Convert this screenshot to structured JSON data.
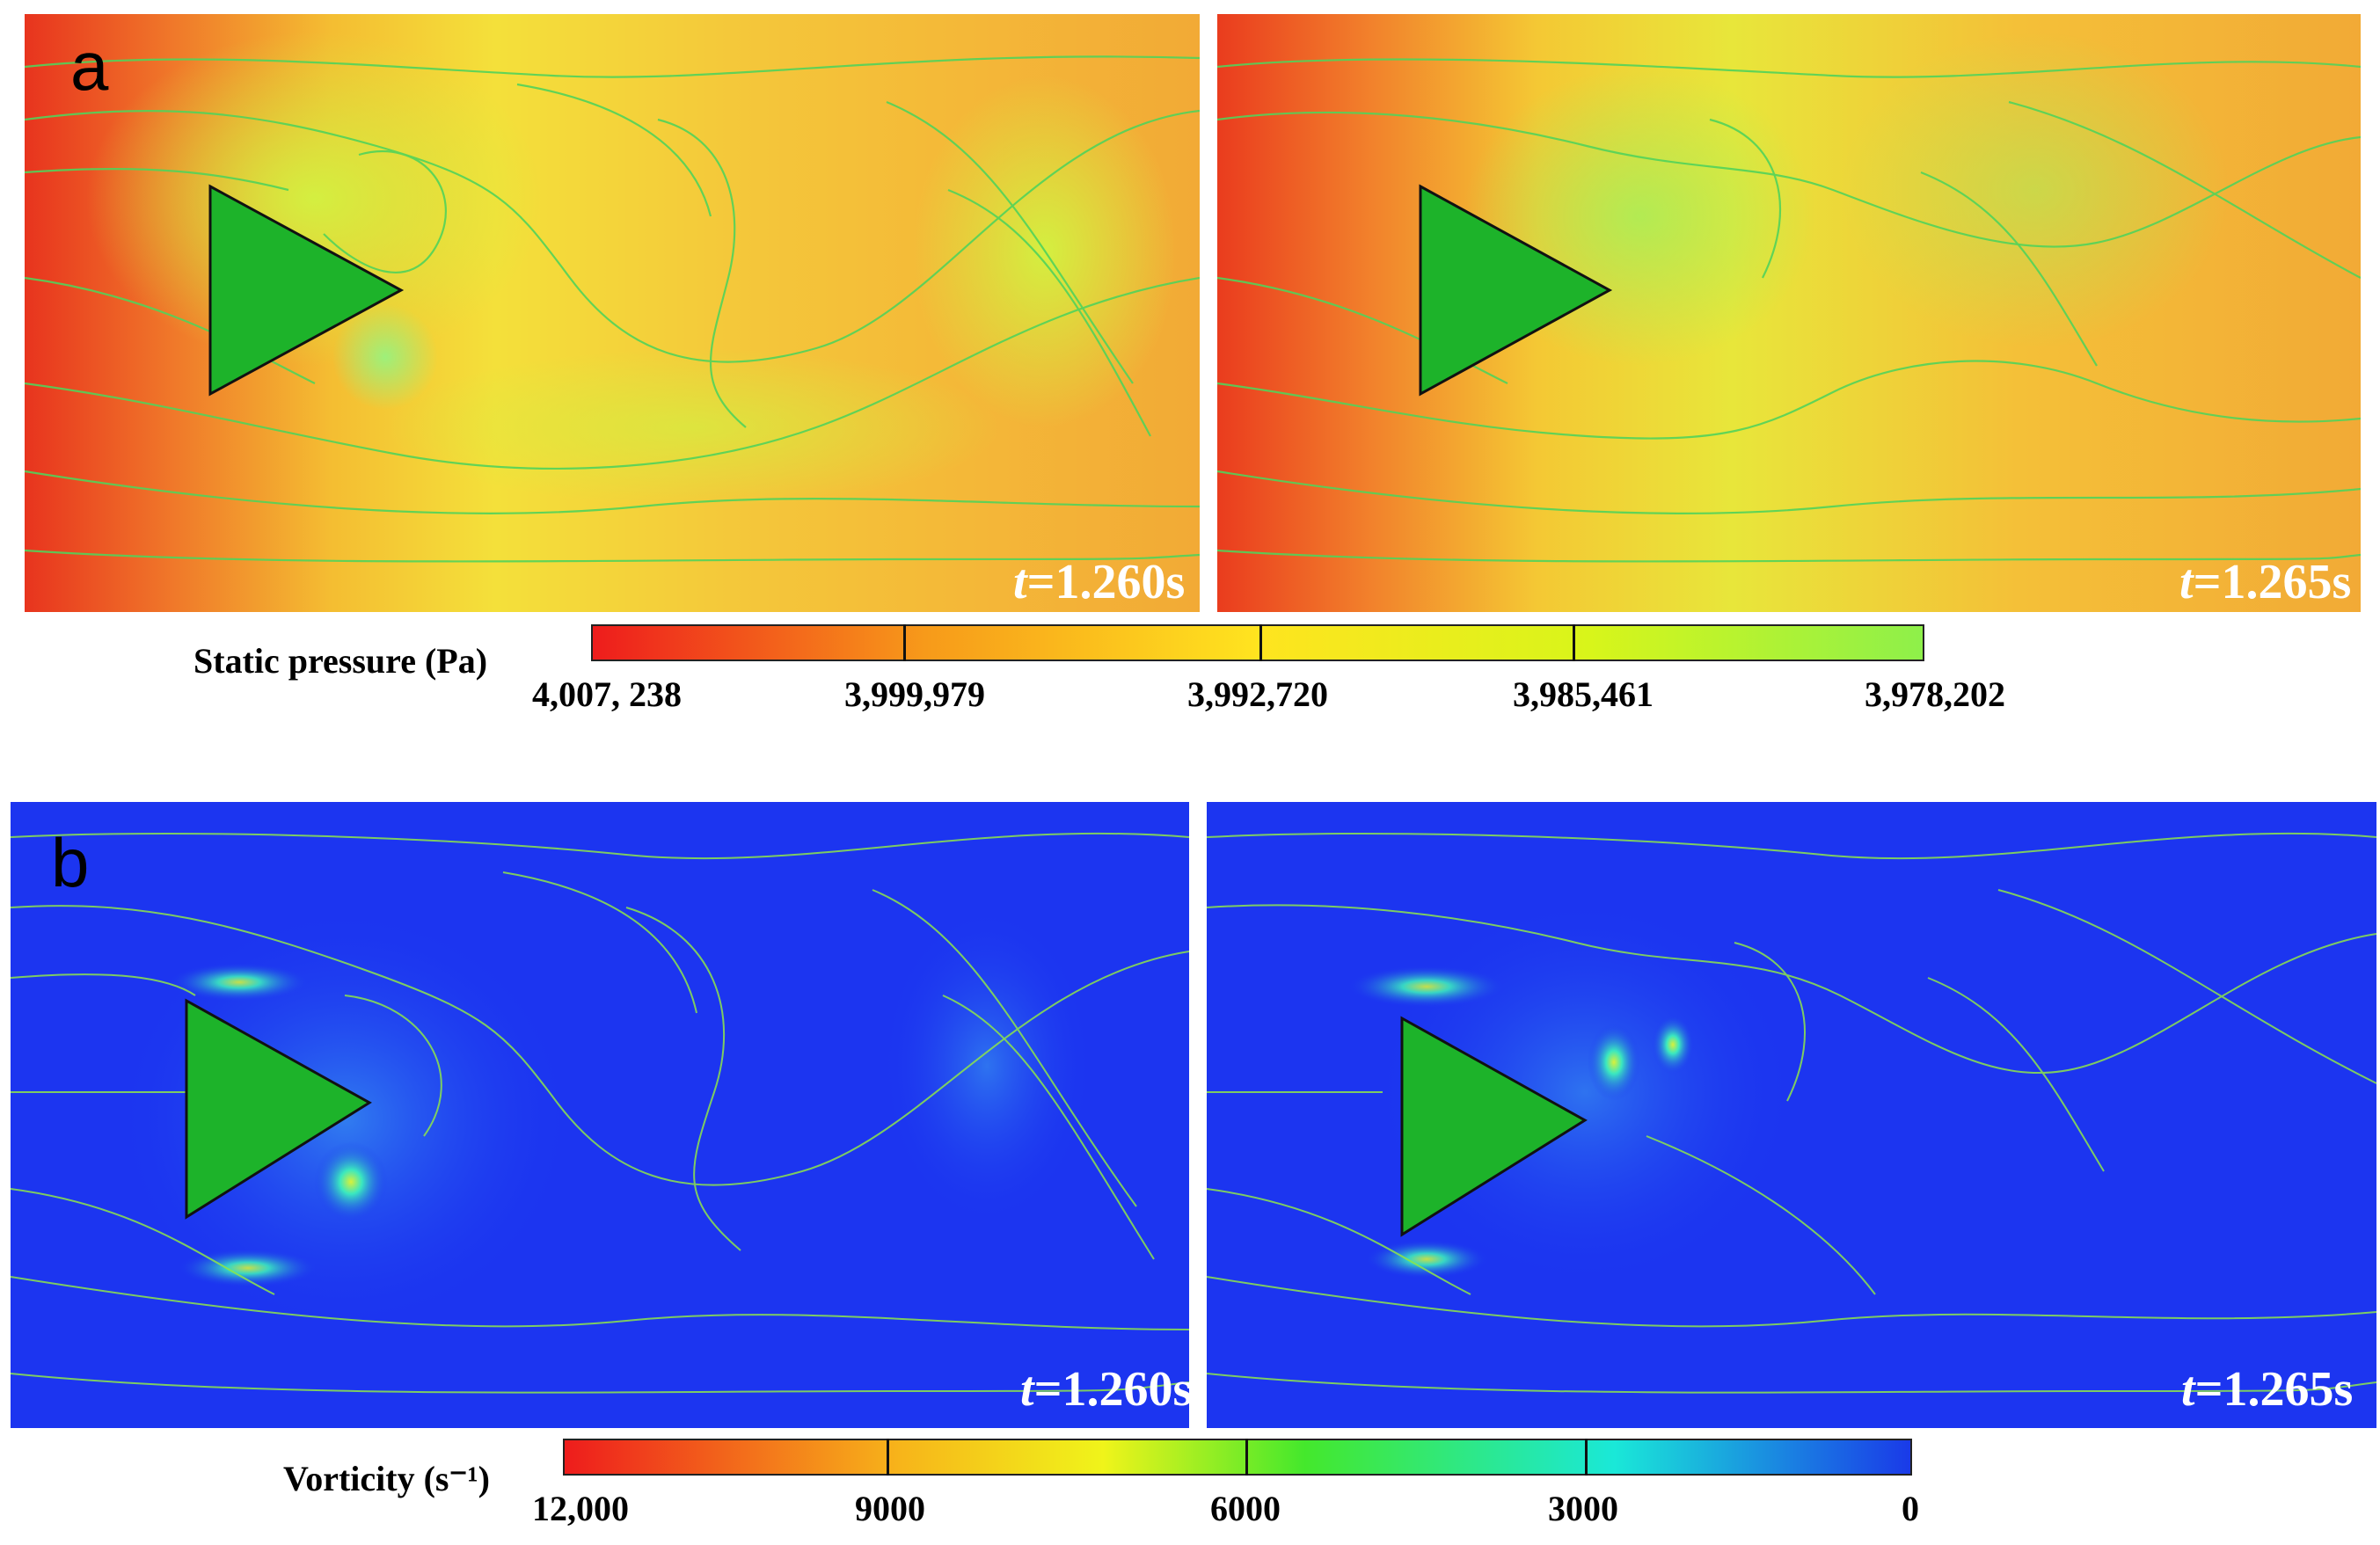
{
  "panels": {
    "a": {
      "letter": "a",
      "left_time": "t=1.260s",
      "right_time": "t=1.265s"
    },
    "b": {
      "letter": "b",
      "left_time": "t=1.260s",
      "right_time": "t=1.265s"
    }
  },
  "colorbar_a": {
    "title": "Static pressure (Pa)",
    "ticks": [
      "4,007, 238",
      "3,999,979",
      "3,992,720",
      "3,985,461",
      "3,978,202"
    ],
    "colors": [
      "#ee1c1c",
      "#f79a1a",
      "#ffe41f",
      "#d8f51a",
      "#8ef04a"
    ]
  },
  "colorbar_b": {
    "title": "Vorticity (s⁻¹)",
    "ticks": [
      "12,000",
      "9000",
      "6000",
      "3000",
      "0"
    ],
    "colors": [
      "#ee1c1c",
      "#f7b51a",
      "#f0f41a",
      "#44e82c",
      "#1ae8d8",
      "#1a3ae8"
    ]
  },
  "colors": {
    "pressure_background": "#f2a23a",
    "vorticity_background": "#1c35f0",
    "body_fill": "#1db32a",
    "streamline_green": "#6ee04a",
    "streamline_cyan": "#3cd2a8",
    "streamline_blue": "#2a6ee0"
  }
}
